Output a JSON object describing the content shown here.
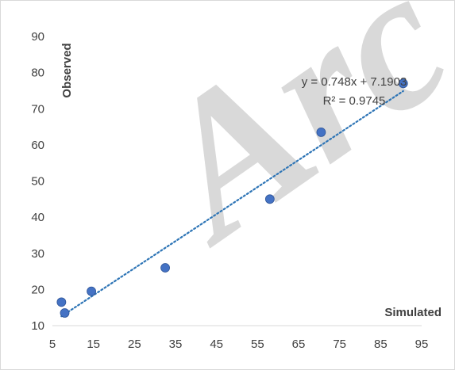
{
  "chart_data": {
    "type": "scatter",
    "title": "",
    "xlabel": "Simulated",
    "ylabel": "Observed",
    "xlim": [
      5,
      95
    ],
    "ylim": [
      10,
      90
    ],
    "x_ticks": [
      5,
      15,
      25,
      35,
      45,
      55,
      65,
      75,
      85,
      95
    ],
    "y_ticks": [
      10,
      20,
      30,
      40,
      50,
      60,
      70,
      80,
      90
    ],
    "grid": false,
    "legend": "none",
    "series": [
      {
        "points": [
          {
            "x": 7.2,
            "y": 16.5
          },
          {
            "x": 8.0,
            "y": 13.5
          },
          {
            "x": 14.5,
            "y": 19.5
          },
          {
            "x": 32.5,
            "y": 26.0
          },
          {
            "x": 58.0,
            "y": 45.0
          },
          {
            "x": 70.5,
            "y": 63.5
          },
          {
            "x": 90.5,
            "y": 77.0
          }
        ],
        "color": "#4472c4"
      }
    ],
    "trendline": {
      "type": "linear",
      "slope": 0.748,
      "intercept": 7.1903,
      "x_range": [
        7.2,
        90.5
      ],
      "equation_label": "y = 0.748x + 7.1903",
      "r2_label": "R² = 0.9745",
      "color": "#2e75b6",
      "style": "dotted"
    },
    "watermark": "Arc"
  }
}
